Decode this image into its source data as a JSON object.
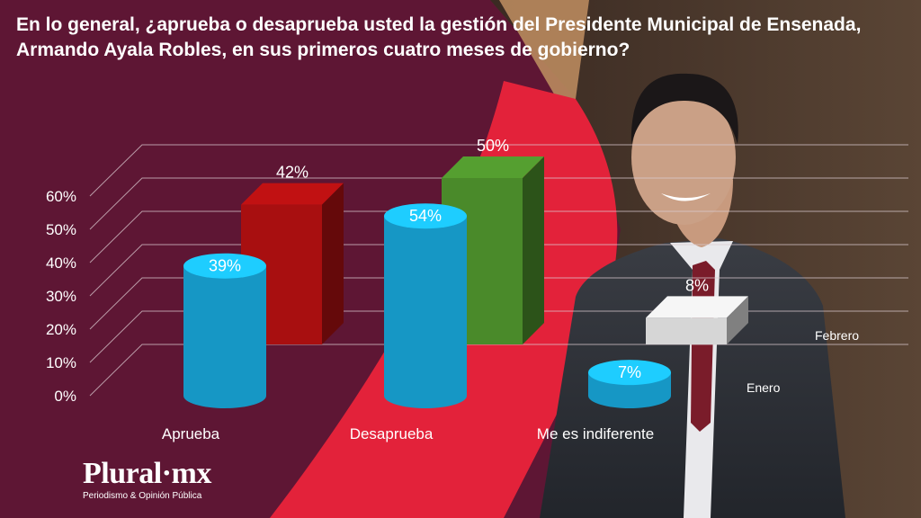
{
  "colors": {
    "background": "#5e1634",
    "accent_red": "#e3223a",
    "accent_gold": "#b98a5e",
    "series_enero": "#1ab2e8",
    "series_febrero_aprueba": "#a80f10",
    "series_febrero_desaprueba": "#4a8a2a",
    "series_febrero_indiferente": "#d6d6d6"
  },
  "title": "En lo general, ¿aprueba o desaprueba usted la gestión del Presidente Municipal de Ensenada, Armando Ayala Robles, en sus primeros cuatro meses de gobierno?",
  "logo": {
    "name": "Plural·mx",
    "tagline": "Periodismo & Opinión Pública"
  },
  "chart_data": {
    "type": "bar",
    "title": "En lo general, ¿aprueba o desaprueba usted la gestión del Presidente Municipal de Ensenada, Armando Ayala Robles, en sus primeros cuatro meses de gobierno?",
    "categories": [
      "Aprueba",
      "Desaprueba",
      "Me es indiferente"
    ],
    "series": [
      {
        "name": "Enero",
        "values": [
          39,
          54,
          7
        ],
        "labels": [
          "39%",
          "54%",
          "7%"
        ]
      },
      {
        "name": "Febrero",
        "values": [
          42,
          50,
          8
        ],
        "labels": [
          "42%",
          "50%",
          "8%"
        ]
      }
    ],
    "y_ticks": [
      "0%",
      "10%",
      "20%",
      "30%",
      "40%",
      "50%",
      "60%"
    ],
    "ylim": [
      0,
      60
    ],
    "grid": true,
    "style": "3d",
    "legend": "right"
  }
}
